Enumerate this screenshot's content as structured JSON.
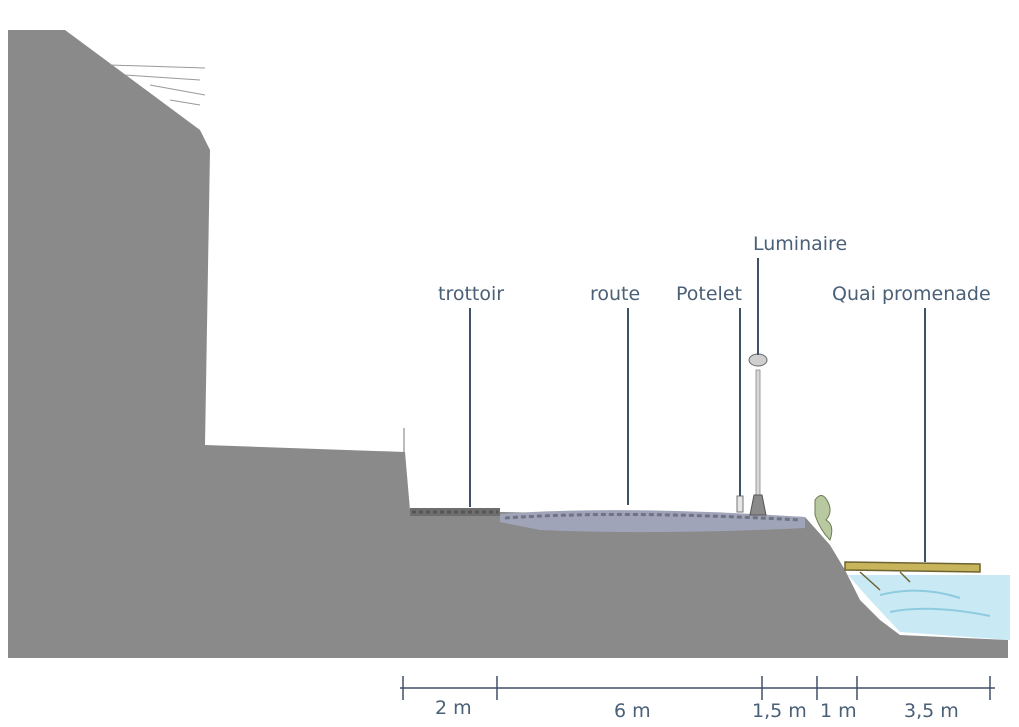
{
  "labels": {
    "trottoir": "trottoir",
    "route": "route",
    "potelet": "Potelet",
    "luminaire": "Luminaire",
    "quai": "Quai promenade"
  },
  "dimensions": {
    "d1": "2 m",
    "d2": "6 m",
    "d3": "1,5 m",
    "d4": "1 m",
    "d5": "3,5 m"
  },
  "colors": {
    "ground": "#8a8a8a",
    "text": "#4a6077",
    "water": "#bfe6f2",
    "quay": "#c8b45a"
  }
}
